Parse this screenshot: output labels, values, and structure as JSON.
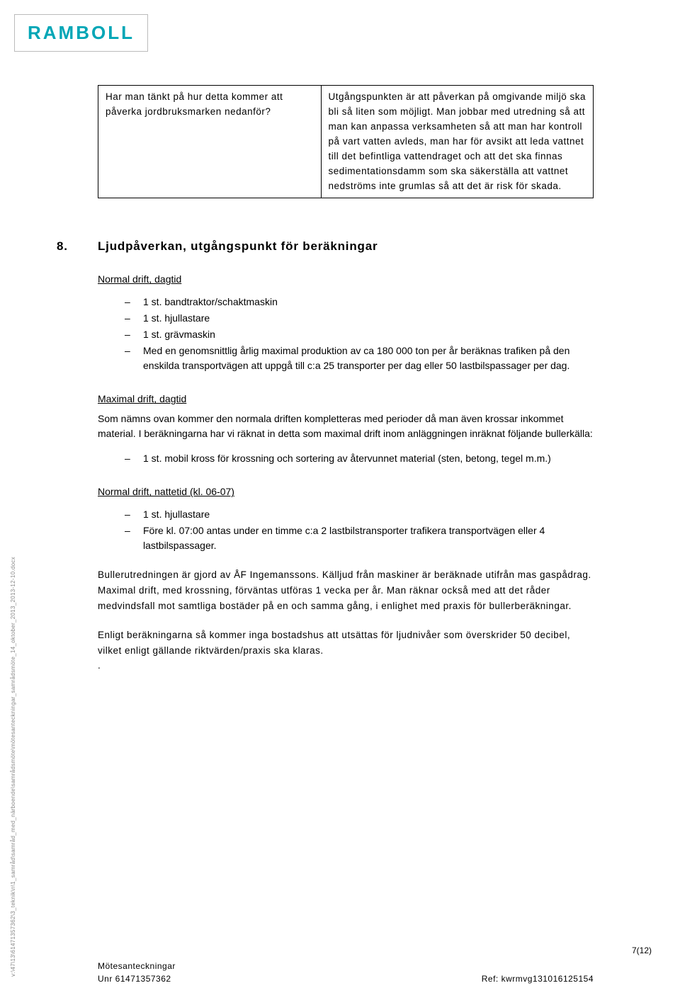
{
  "logo": {
    "text": "RAMBOLL"
  },
  "table": {
    "left": "Har man tänkt på hur detta kommer att påverka jordbruksmarken nedanför?",
    "right": "Utgångspunkten är att påverkan på omgivande miljö ska bli så liten som möjligt. Man jobbar med utredning så att man kan anpassa verksamheten så att man har kontroll på vart vatten avleds, man har för avsikt att leda vattnet till det befintliga vattendraget och att det ska finnas sedimentationsdamm som ska säkerställa att vattnet nedströms inte grumlas så att det är risk för skada."
  },
  "section": {
    "number": "8.",
    "title": "Ljudpåverkan, utgångspunkt för beräkningar"
  },
  "sub1": {
    "title": "Normal drift, dagtid",
    "items": [
      "1 st. bandtraktor/schaktmaskin",
      "1 st. hjullastare",
      "1 st. grävmaskin",
      "Med en genomsnittlig årlig maximal produktion av ca 180 000 ton per år beräknas trafiken på den enskilda transportvägen att uppgå till c:a 25 transporter per dag eller 50 lastbilspassager per dag."
    ]
  },
  "sub2": {
    "title": "Maximal drift, dagtid",
    "intro": "Som nämns ovan kommer den normala driften kompletteras med perioder då man även krossar inkommet material. I beräkningarna har vi räknat in detta som maximal drift inom anläggningen inräknat följande bullerkälla:",
    "items": [
      "1 st. mobil kross för krossning och sortering av återvunnet material (sten, betong, tegel m.m.)"
    ]
  },
  "sub3": {
    "title": "Normal drift, nattetid (kl. 06-07)",
    "items": [
      "1 st. hjullastare",
      "Före kl. 07:00 antas under en timme c:a 2 lastbilstransporter trafikera transportvägen eller 4 lastbilspassager."
    ]
  },
  "body": {
    "p1": "Bullerutredningen är gjord av ÅF Ingemanssons. Källjud från maskiner är beräknade utifrån mas gaspådrag. Maximal drift, med krossning, förväntas utföras 1 vecka per år. Man räknar också med att det råder medvindsfall mot samtliga bostäder på en och samma gång, i enlighet med praxis för bullerberäkningar.",
    "p2": "Enligt beräkningarna så kommer inga bostadshus att utsättas för ljudnivåer som överskrider 50 decibel, vilket enligt gällande riktvärden/praxis ska klaras.",
    "dot": "."
  },
  "vertical_path": "v:\\47\\13\\61471357362\\3_teknik\\n\\1_samråd\\samråd_med_närboende\\samrådsmöte\\mötesanteckningar_samrådsmöte_14_oktober_2013_2013-12-10.docx",
  "footer": {
    "title": "Mötesanteckningar",
    "unr": "Unr 61471357362",
    "ref": "Ref: kwrmvg131016125154"
  },
  "page_num": "7(12)"
}
